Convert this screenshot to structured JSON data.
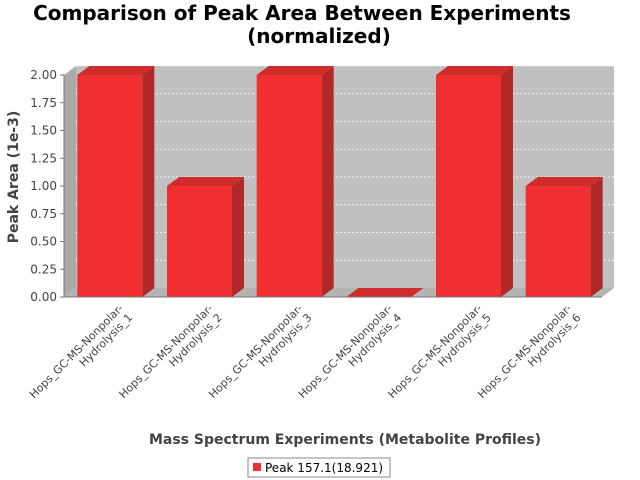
{
  "chart_data": {
    "type": "bar",
    "title_line1": "Comparison of Peak Area Between Experiments",
    "title_line2": "(normalized)",
    "xlabel": "Mass Spectrum Experiments (Metabolite Profiles)",
    "ylabel": "Peak Area (1e-3)",
    "categories": [
      [
        "Hops_GC-MS-Nonpolar-",
        "Hydrolysis_1"
      ],
      [
        "Hops_GC-MS-Nonpolar-",
        "Hydrolysis_2"
      ],
      [
        "Hops_GC-MS-Nonpolar-",
        "Hydrolysis_3"
      ],
      [
        "Hops_GC-MS-Nonpolar-",
        "Hydrolysis_4"
      ],
      [
        "Hops_GC-MS-Nonpolar-",
        "Hydrolysis_5"
      ],
      [
        "Hops_GC-MS-Nonpolar-",
        "Hydrolysis_6"
      ]
    ],
    "series": [
      {
        "name": "Peak 157.1(18.921)",
        "values": [
          2.0,
          1.0,
          2.0,
          0.0,
          2.0,
          1.0
        ],
        "color": "#f03030"
      }
    ],
    "ylim": [
      0,
      2.0
    ],
    "yticks": [
      "0.00",
      "0.25",
      "0.50",
      "0.75",
      "1.00",
      "1.25",
      "1.50",
      "1.75",
      "2.00"
    ],
    "grid": true,
    "legend_position": "bottom-center",
    "colors": {
      "plot_bg": "#c0c0c0",
      "bar": "#f03030",
      "bar_side": "#b02828",
      "bar_top": "#d02c2c"
    }
  }
}
